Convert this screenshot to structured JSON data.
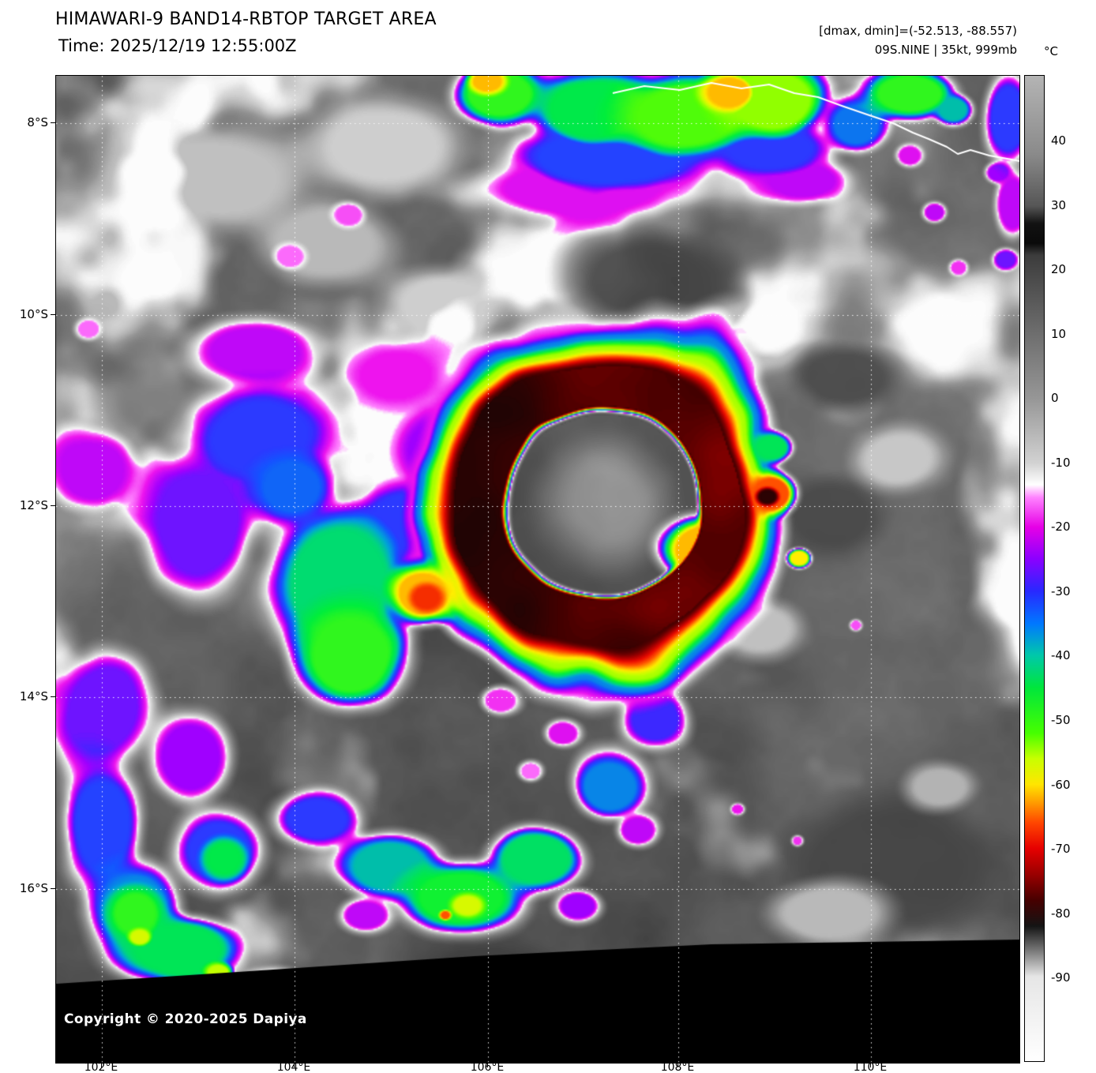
{
  "header": {
    "title": "HIMAWARI-9 BAND14-RBTOP TARGET AREA",
    "time": "Time: 2025/12/19 12:55:00Z",
    "range_label": "[dmax, dmin]=(-52.513, -88.557)",
    "storm_label": "09S.NINE | 35kt, 999mb"
  },
  "colorbar": {
    "unit": "°C",
    "ticks": [
      "40",
      "30",
      "20",
      "10",
      "0",
      "-10",
      "-20",
      "-30",
      "-40",
      "-50",
      "-60",
      "-70",
      "-80",
      "-90"
    ]
  },
  "axes": {
    "lat": [
      "8°S",
      "10°S",
      "12°S",
      "14°S",
      "16°S"
    ],
    "lon": [
      "102°E",
      "104°E",
      "106°E",
      "108°E",
      "110°E"
    ]
  },
  "map_overlay": {
    "copyright": "Copyright © 2020-2025 Dapiya"
  }
}
